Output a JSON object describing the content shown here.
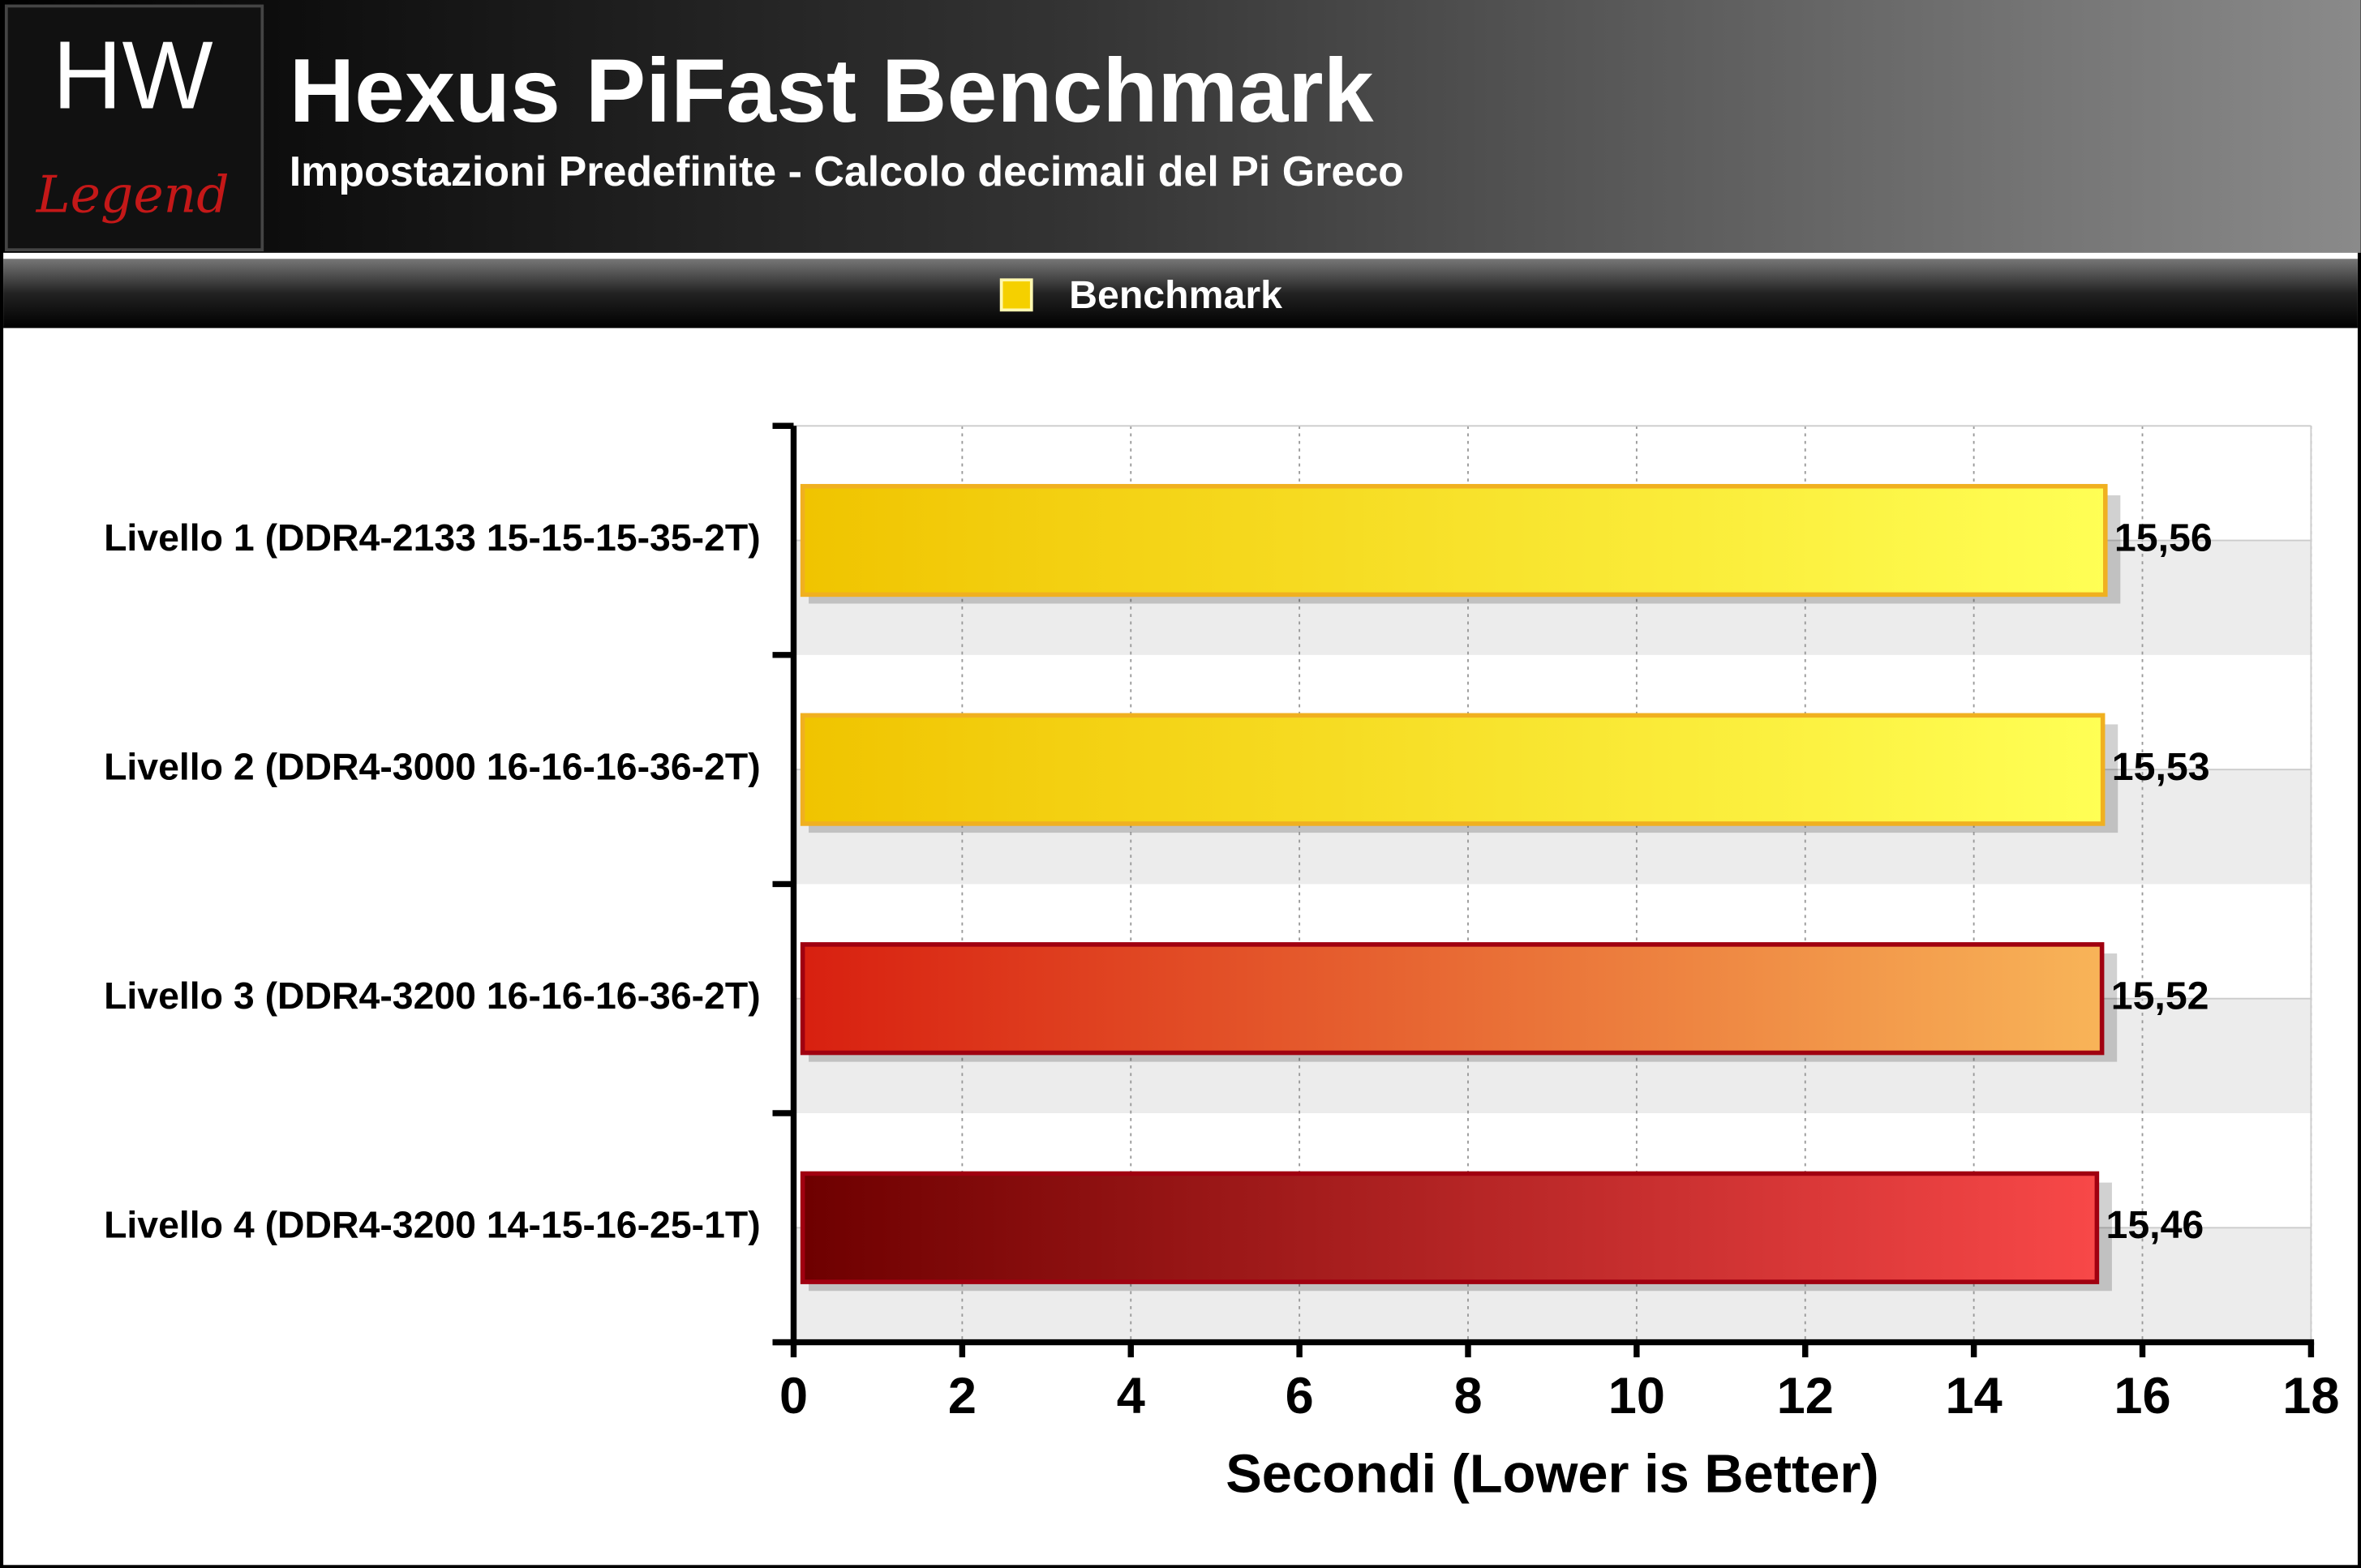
{
  "logo": {
    "top": "HW",
    "bottom": "Legend"
  },
  "chart_data": {
    "type": "bar",
    "orientation": "horizontal",
    "title": "Hexus PiFast Benchmark",
    "subtitle": "Impostazioni Predefinite - Calcolo decimali del Pi Greco",
    "x_label": "Secondi (Lower is Better)",
    "categories": [
      "Livello 1 (DDR4-2133 15-15-15-35-2T)",
      "Livello 2 (DDR4-3000 16-16-16-36-2T)",
      "Livello 3 (DDR4-3200 16-16-16-36-2T)",
      "Livello 4 (DDR4-3200 14-15-16-25-1T)"
    ],
    "series": [
      {
        "name": "Benchmark",
        "color": "#f5d000",
        "values": [
          15.56,
          15.53,
          15.52,
          15.46
        ],
        "value_labels": [
          "15,56",
          "15,53",
          "15,52",
          "15,46"
        ],
        "gradients": [
          [
            "#f0c400",
            "#ffff55"
          ],
          [
            "#f0c400",
            "#ffff55"
          ],
          [
            "#d82010",
            "#f8b458"
          ],
          [
            "#6e0000",
            "#f84848"
          ]
        ],
        "borders": [
          "#f0b020",
          "#f0b020",
          "#a00010",
          "#a00010"
        ]
      }
    ],
    "xlim": [
      0,
      18
    ],
    "xticks": [
      0,
      2,
      4,
      6,
      8,
      10,
      12,
      14,
      16,
      18
    ],
    "grid": true,
    "legend": "top"
  }
}
